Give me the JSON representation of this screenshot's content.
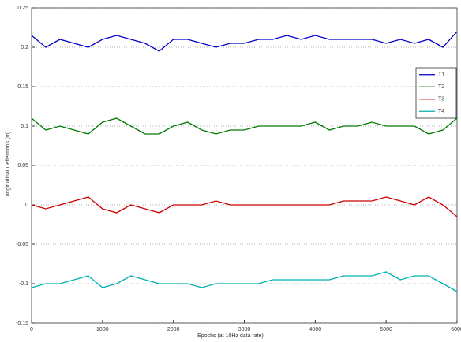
{
  "chart_data": {
    "type": "line",
    "xlabel": "Epochs (at 10Hz data rate)",
    "ylabel": "Longitudinal Deflections (m)",
    "x": [
      0,
      200,
      400,
      600,
      800,
      1000,
      1200,
      1400,
      1600,
      1800,
      2000,
      2200,
      2400,
      2600,
      2800,
      3000,
      3200,
      3400,
      3600,
      3800,
      4000,
      4200,
      4400,
      4600,
      4800,
      5000,
      5200,
      5400,
      5600,
      5800,
      6000
    ],
    "series": [
      {
        "name": "T1",
        "color": "#0000cc",
        "values": [
          0.215,
          0.2,
          0.21,
          0.205,
          0.2,
          0.21,
          0.215,
          0.21,
          0.205,
          0.195,
          0.21,
          0.21,
          0.205,
          0.2,
          0.205,
          0.205,
          0.21,
          0.21,
          0.215,
          0.21,
          0.215,
          0.21,
          0.21,
          0.21,
          0.21,
          0.205,
          0.21,
          0.205,
          0.21,
          0.2,
          0.22
        ]
      },
      {
        "name": "T2",
        "color": "#007a00",
        "values": [
          0.11,
          0.095,
          0.1,
          0.095,
          0.09,
          0.105,
          0.11,
          0.1,
          0.09,
          0.09,
          0.1,
          0.105,
          0.095,
          0.09,
          0.095,
          0.095,
          0.1,
          0.1,
          0.1,
          0.1,
          0.105,
          0.095,
          0.1,
          0.1,
          0.105,
          0.1,
          0.1,
          0.1,
          0.09,
          0.095,
          0.11
        ]
      },
      {
        "name": "T3",
        "color": "#cc0000",
        "values": [
          0,
          -0.005,
          0,
          0.005,
          0.01,
          -0.005,
          -0.01,
          0,
          -0.005,
          -0.01,
          0,
          0,
          0,
          0.005,
          0,
          0,
          0,
          0,
          0,
          0,
          0,
          0,
          0.005,
          0.005,
          0.005,
          0.01,
          0.005,
          0,
          0.01,
          0,
          -0.015
        ]
      },
      {
        "name": "T4",
        "color": "#00b0b0",
        "values": [
          -0.105,
          -0.1,
          -0.1,
          -0.095,
          -0.09,
          -0.105,
          -0.1,
          -0.09,
          -0.095,
          -0.1,
          -0.1,
          -0.1,
          -0.105,
          -0.1,
          -0.1,
          -0.1,
          -0.1,
          -0.095,
          -0.095,
          -0.095,
          -0.095,
          -0.095,
          -0.09,
          -0.09,
          -0.09,
          -0.085,
          -0.095,
          -0.09,
          -0.09,
          -0.1,
          -0.11
        ]
      }
    ],
    "xlim": [
      0,
      6000
    ],
    "xticks": [
      0,
      1000,
      2000,
      3000,
      4000,
      5000,
      6000
    ],
    "ylim": [
      -0.15,
      0.25
    ],
    "yticks": [
      -0.15,
      -0.1,
      -0.05,
      0,
      0.05,
      0.1,
      0.15,
      0.2,
      0.25
    ],
    "grid": true,
    "legend": "right"
  }
}
